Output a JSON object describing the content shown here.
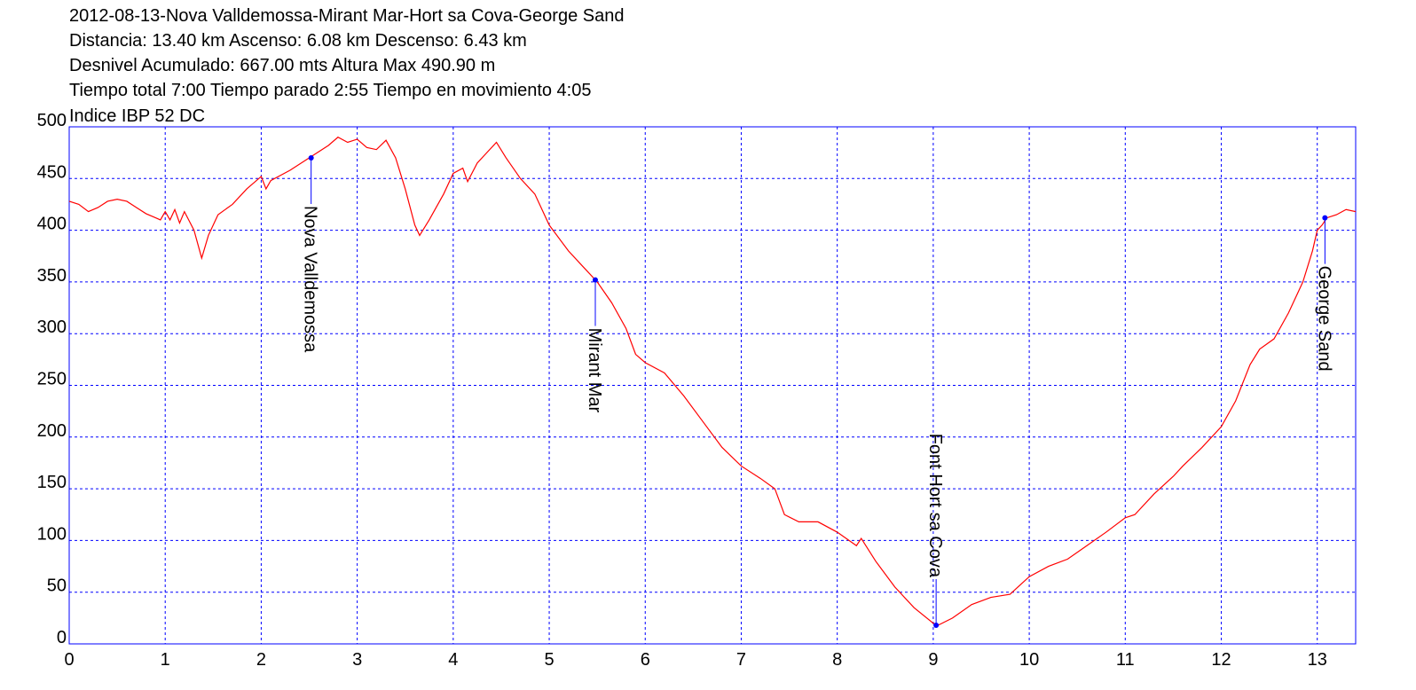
{
  "chart_data": {
    "type": "line",
    "title": "2012-08-13-Nova Valldemossa-Mirant Mar-Hort sa Cova-George Sand",
    "info_lines": [
      "Distancia: 13.40 km Ascenso: 6.08 km Descenso: 6.43 km",
      "Desnivel Acumulado: 667.00 mts  Altura Max 490.90 m",
      "Tiempo total 7:00 Tiempo parado 2:55 Tiempo en movimiento 4:05",
      "Indice IBP 52 DC"
    ],
    "xlim": [
      0,
      13.4
    ],
    "ylim": [
      0,
      500
    ],
    "xticks": [
      0,
      1,
      2,
      3,
      4,
      5,
      6,
      7,
      8,
      9,
      10,
      11,
      12,
      13
    ],
    "yticks": [
      0,
      50,
      100,
      150,
      200,
      250,
      300,
      350,
      400,
      450,
      500
    ],
    "grid": true,
    "grid_color": "#0000ff",
    "series": [
      {
        "color": "#ff0000",
        "x": [
          0,
          0.1,
          0.2,
          0.3,
          0.4,
          0.5,
          0.6,
          0.7,
          0.8,
          0.9,
          0.95,
          1.0,
          1.05,
          1.1,
          1.15,
          1.2,
          1.3,
          1.38,
          1.45,
          1.55,
          1.7,
          1.85,
          2.0,
          2.05,
          2.1,
          2.3,
          2.5,
          2.7,
          2.8,
          2.9,
          3.0,
          3.1,
          3.2,
          3.3,
          3.4,
          3.5,
          3.6,
          3.65,
          3.75,
          3.9,
          4.0,
          4.1,
          4.15,
          4.25,
          4.35,
          4.45,
          4.55,
          4.7,
          4.85,
          5.0,
          5.2,
          5.35,
          5.5,
          5.65,
          5.8,
          5.9,
          6.0,
          6.2,
          6.4,
          6.6,
          6.8,
          7.0,
          7.2,
          7.35,
          7.45,
          7.6,
          7.8,
          8.0,
          8.2,
          8.25,
          8.4,
          8.6,
          8.8,
          9.0,
          9.05,
          9.2,
          9.4,
          9.6,
          9.8,
          10.0,
          10.2,
          10.4,
          10.6,
          10.8,
          11.0,
          11.1,
          11.3,
          11.5,
          11.6,
          11.8,
          12.0,
          12.15,
          12.3,
          12.4,
          12.55,
          12.7,
          12.85,
          12.95,
          13.0,
          13.05,
          13.1,
          13.2,
          13.3,
          13.4
        ],
        "y": [
          428,
          425,
          418,
          422,
          428,
          430,
          428,
          422,
          416,
          412,
          410,
          418,
          410,
          420,
          407,
          418,
          400,
          373,
          395,
          415,
          425,
          440,
          452,
          440,
          448,
          458,
          470,
          482,
          490,
          485,
          488,
          480,
          478,
          487,
          470,
          440,
          405,
          395,
          410,
          435,
          455,
          460,
          447,
          465,
          475,
          485,
          470,
          450,
          435,
          405,
          380,
          365,
          350,
          330,
          305,
          280,
          272,
          262,
          240,
          215,
          190,
          172,
          160,
          150,
          125,
          118,
          118,
          108,
          95,
          102,
          80,
          55,
          35,
          20,
          18,
          25,
          38,
          45,
          48,
          65,
          75,
          82,
          95,
          108,
          122,
          125,
          145,
          162,
          172,
          190,
          210,
          235,
          270,
          285,
          295,
          320,
          350,
          380,
          400,
          405,
          412,
          415,
          420,
          418
        ]
      }
    ],
    "waypoints": [
      {
        "name": "Nova Valldemossa",
        "x": 2.52,
        "y": 470
      },
      {
        "name": "Mirant Mar",
        "x": 5.48,
        "y": 352
      },
      {
        "name": "Font Hort sa Cova",
        "x": 9.03,
        "y": 18
      },
      {
        "name": "George Sand",
        "x": 13.08,
        "y": 412
      }
    ],
    "waypoint_color": "#0000ff"
  }
}
